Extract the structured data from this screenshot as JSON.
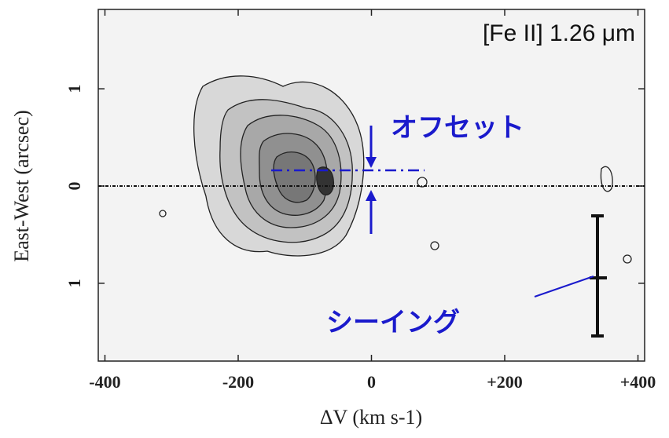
{
  "chart_data": {
    "type": "contour",
    "x_label": "ΔV (km s-1)",
    "y_label": "East-West (arcsec)",
    "annotations": [
      "[Fe II] 1.26 μm",
      "オフセット",
      "シーイング"
    ],
    "xlim": [
      -410,
      410
    ],
    "xticks": [
      -400,
      -200,
      0,
      {
        "value": 200,
        "label": "+200"
      },
      {
        "value": 400,
        "label": "+400"
      }
    ],
    "ylim": [
      -1.8,
      1.8
    ],
    "yticks": [
      {
        "value": -1,
        "label": "1"
      },
      0,
      1
    ]
  }
}
